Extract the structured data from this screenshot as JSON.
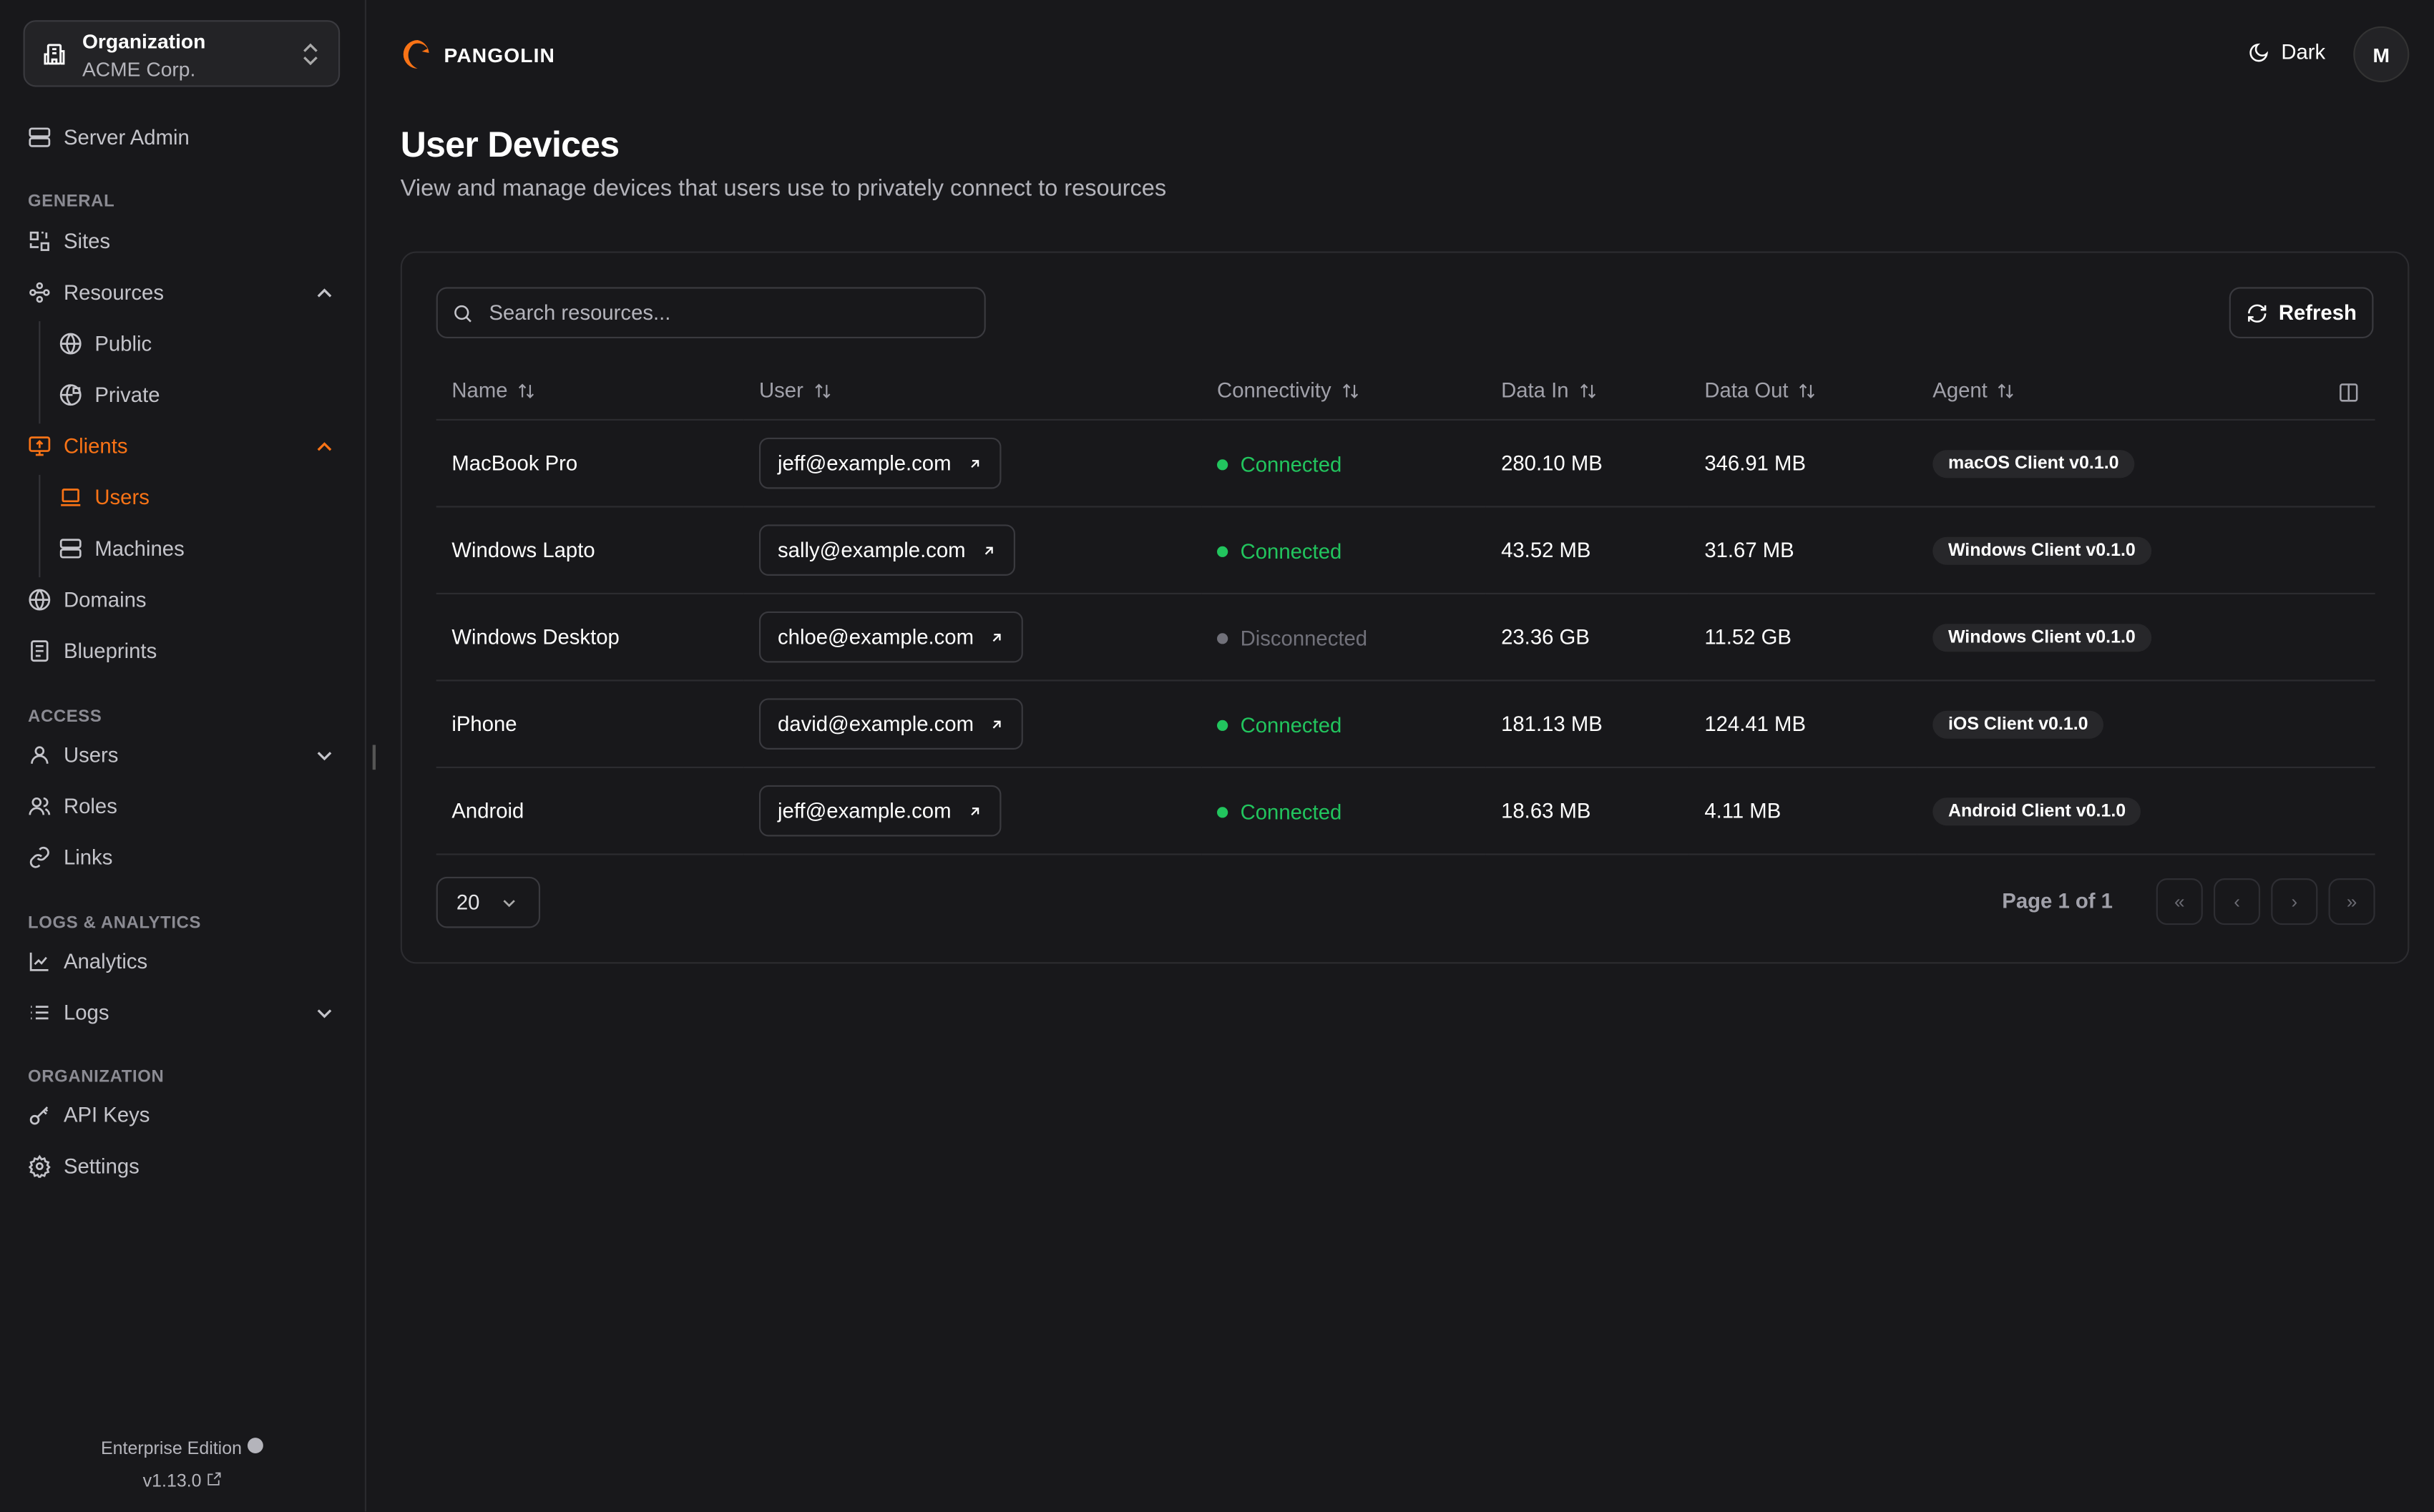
{
  "org": {
    "label": "Organization",
    "name": "ACME Corp."
  },
  "sidebar": {
    "server_admin": "Server Admin",
    "sections": {
      "general": "GENERAL",
      "access": "ACCESS",
      "logs": "LOGS & ANALYTICS",
      "organization": "ORGANIZATION"
    },
    "items": {
      "sites": "Sites",
      "resources": "Resources",
      "public": "Public",
      "private": "Private",
      "clients": "Clients",
      "users": "Users",
      "machines": "Machines",
      "domains": "Domains",
      "blueprints": "Blueprints",
      "access_users": "Users",
      "roles": "Roles",
      "links": "Links",
      "analytics": "Analytics",
      "logs": "Logs",
      "api_keys": "API Keys",
      "settings": "Settings"
    },
    "edition": "Enterprise Edition",
    "version": "v1.13.0"
  },
  "header": {
    "brand": "PANGOLIN",
    "theme": "Dark",
    "avatar": "M"
  },
  "page": {
    "title": "User Devices",
    "description": "View and manage devices that users use to privately connect to resources"
  },
  "toolbar": {
    "search_placeholder": "Search resources...",
    "refresh": "Refresh"
  },
  "table": {
    "columns": [
      "Name",
      "User",
      "Connectivity",
      "Data In",
      "Data Out",
      "Agent"
    ],
    "rows": [
      {
        "name": "MacBook Pro",
        "user": "jeff@example.com",
        "status": "Connected",
        "data_in": "280.10 MB",
        "data_out": "346.91 MB",
        "agent": "macOS Client v0.1.0"
      },
      {
        "name": "Windows Lapto",
        "user": "sally@example.com",
        "status": "Connected",
        "data_in": "43.52 MB",
        "data_out": "31.67 MB",
        "agent": "Windows Client v0.1.0"
      },
      {
        "name": "Windows Desktop",
        "user": "chloe@example.com",
        "status": "Disconnected",
        "data_in": "23.36 GB",
        "data_out": "11.52 GB",
        "agent": "Windows Client v0.1.0"
      },
      {
        "name": "iPhone",
        "user": "david@example.com",
        "status": "Connected",
        "data_in": "181.13 MB",
        "data_out": "124.41 MB",
        "agent": "iOS Client v0.1.0"
      },
      {
        "name": "Android",
        "user": "jeff@example.com",
        "status": "Connected",
        "data_in": "18.63 MB",
        "data_out": "4.11 MB",
        "agent": "Android Client v0.1.0"
      }
    ]
  },
  "pagination": {
    "page_size": "20",
    "page_info": "Page 1 of 1"
  },
  "colors": {
    "accent": "#f97316",
    "connected": "#22c55e",
    "disconnected": "#71717a"
  }
}
